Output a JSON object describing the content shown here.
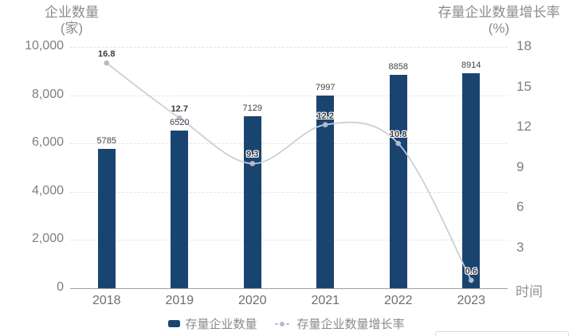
{
  "titles": {
    "left_line1": "企业数量",
    "left_line2": "(家)",
    "right_line1": "存量企业数量增长率",
    "right_line2": "(%)",
    "x_axis": "时间"
  },
  "legend": {
    "items": [
      {
        "label": "存量企业数量",
        "type": "bar"
      },
      {
        "label": "存量企业数量增长率",
        "type": "line"
      }
    ]
  },
  "colors": {
    "bar": "#1a4470",
    "line": "#c9ccd9",
    "marker": "#b5b9cc",
    "grid": "#e3e3e3",
    "axis_line": "#a0a0a0",
    "tick_text": "#7f7f7f"
  },
  "chart_data": {
    "type": "bar",
    "subtype": "combo-bar-line",
    "title": "",
    "categories": [
      "2018",
      "2019",
      "2020",
      "2021",
      "2022",
      "2023"
    ],
    "series": [
      {
        "name": "存量企业数量",
        "type": "bar",
        "y_axis": "left",
        "values": [
          5785,
          6520,
          7129,
          7997,
          8858,
          8914
        ],
        "color": "#1a4470"
      },
      {
        "name": "存量企业数量增长率",
        "type": "line",
        "y_axis": "right",
        "smooth": true,
        "values": [
          16.8,
          12.7,
          9.3,
          12.2,
          10.8,
          0.6
        ],
        "color": "#c9ccd9",
        "marker_color": "#b5b9cc"
      }
    ],
    "left_axis": {
      "title": "企业数量(家)",
      "min": 0,
      "max": 10000,
      "tick_step": 2000,
      "tick_labels": [
        "0",
        "2,000",
        "4,000",
        "6,000",
        "8,000",
        "10,000"
      ]
    },
    "right_axis": {
      "title": "存量企业数量增长率(%)",
      "min": 0,
      "max": 18,
      "tick_step": 3,
      "tick_labels": [
        "3",
        "6",
        "9",
        "12",
        "15",
        "18"
      ]
    },
    "x_axis_title": "时间",
    "grid": "horizontal-dashed",
    "legend_position": "bottom",
    "data_labels": true
  }
}
